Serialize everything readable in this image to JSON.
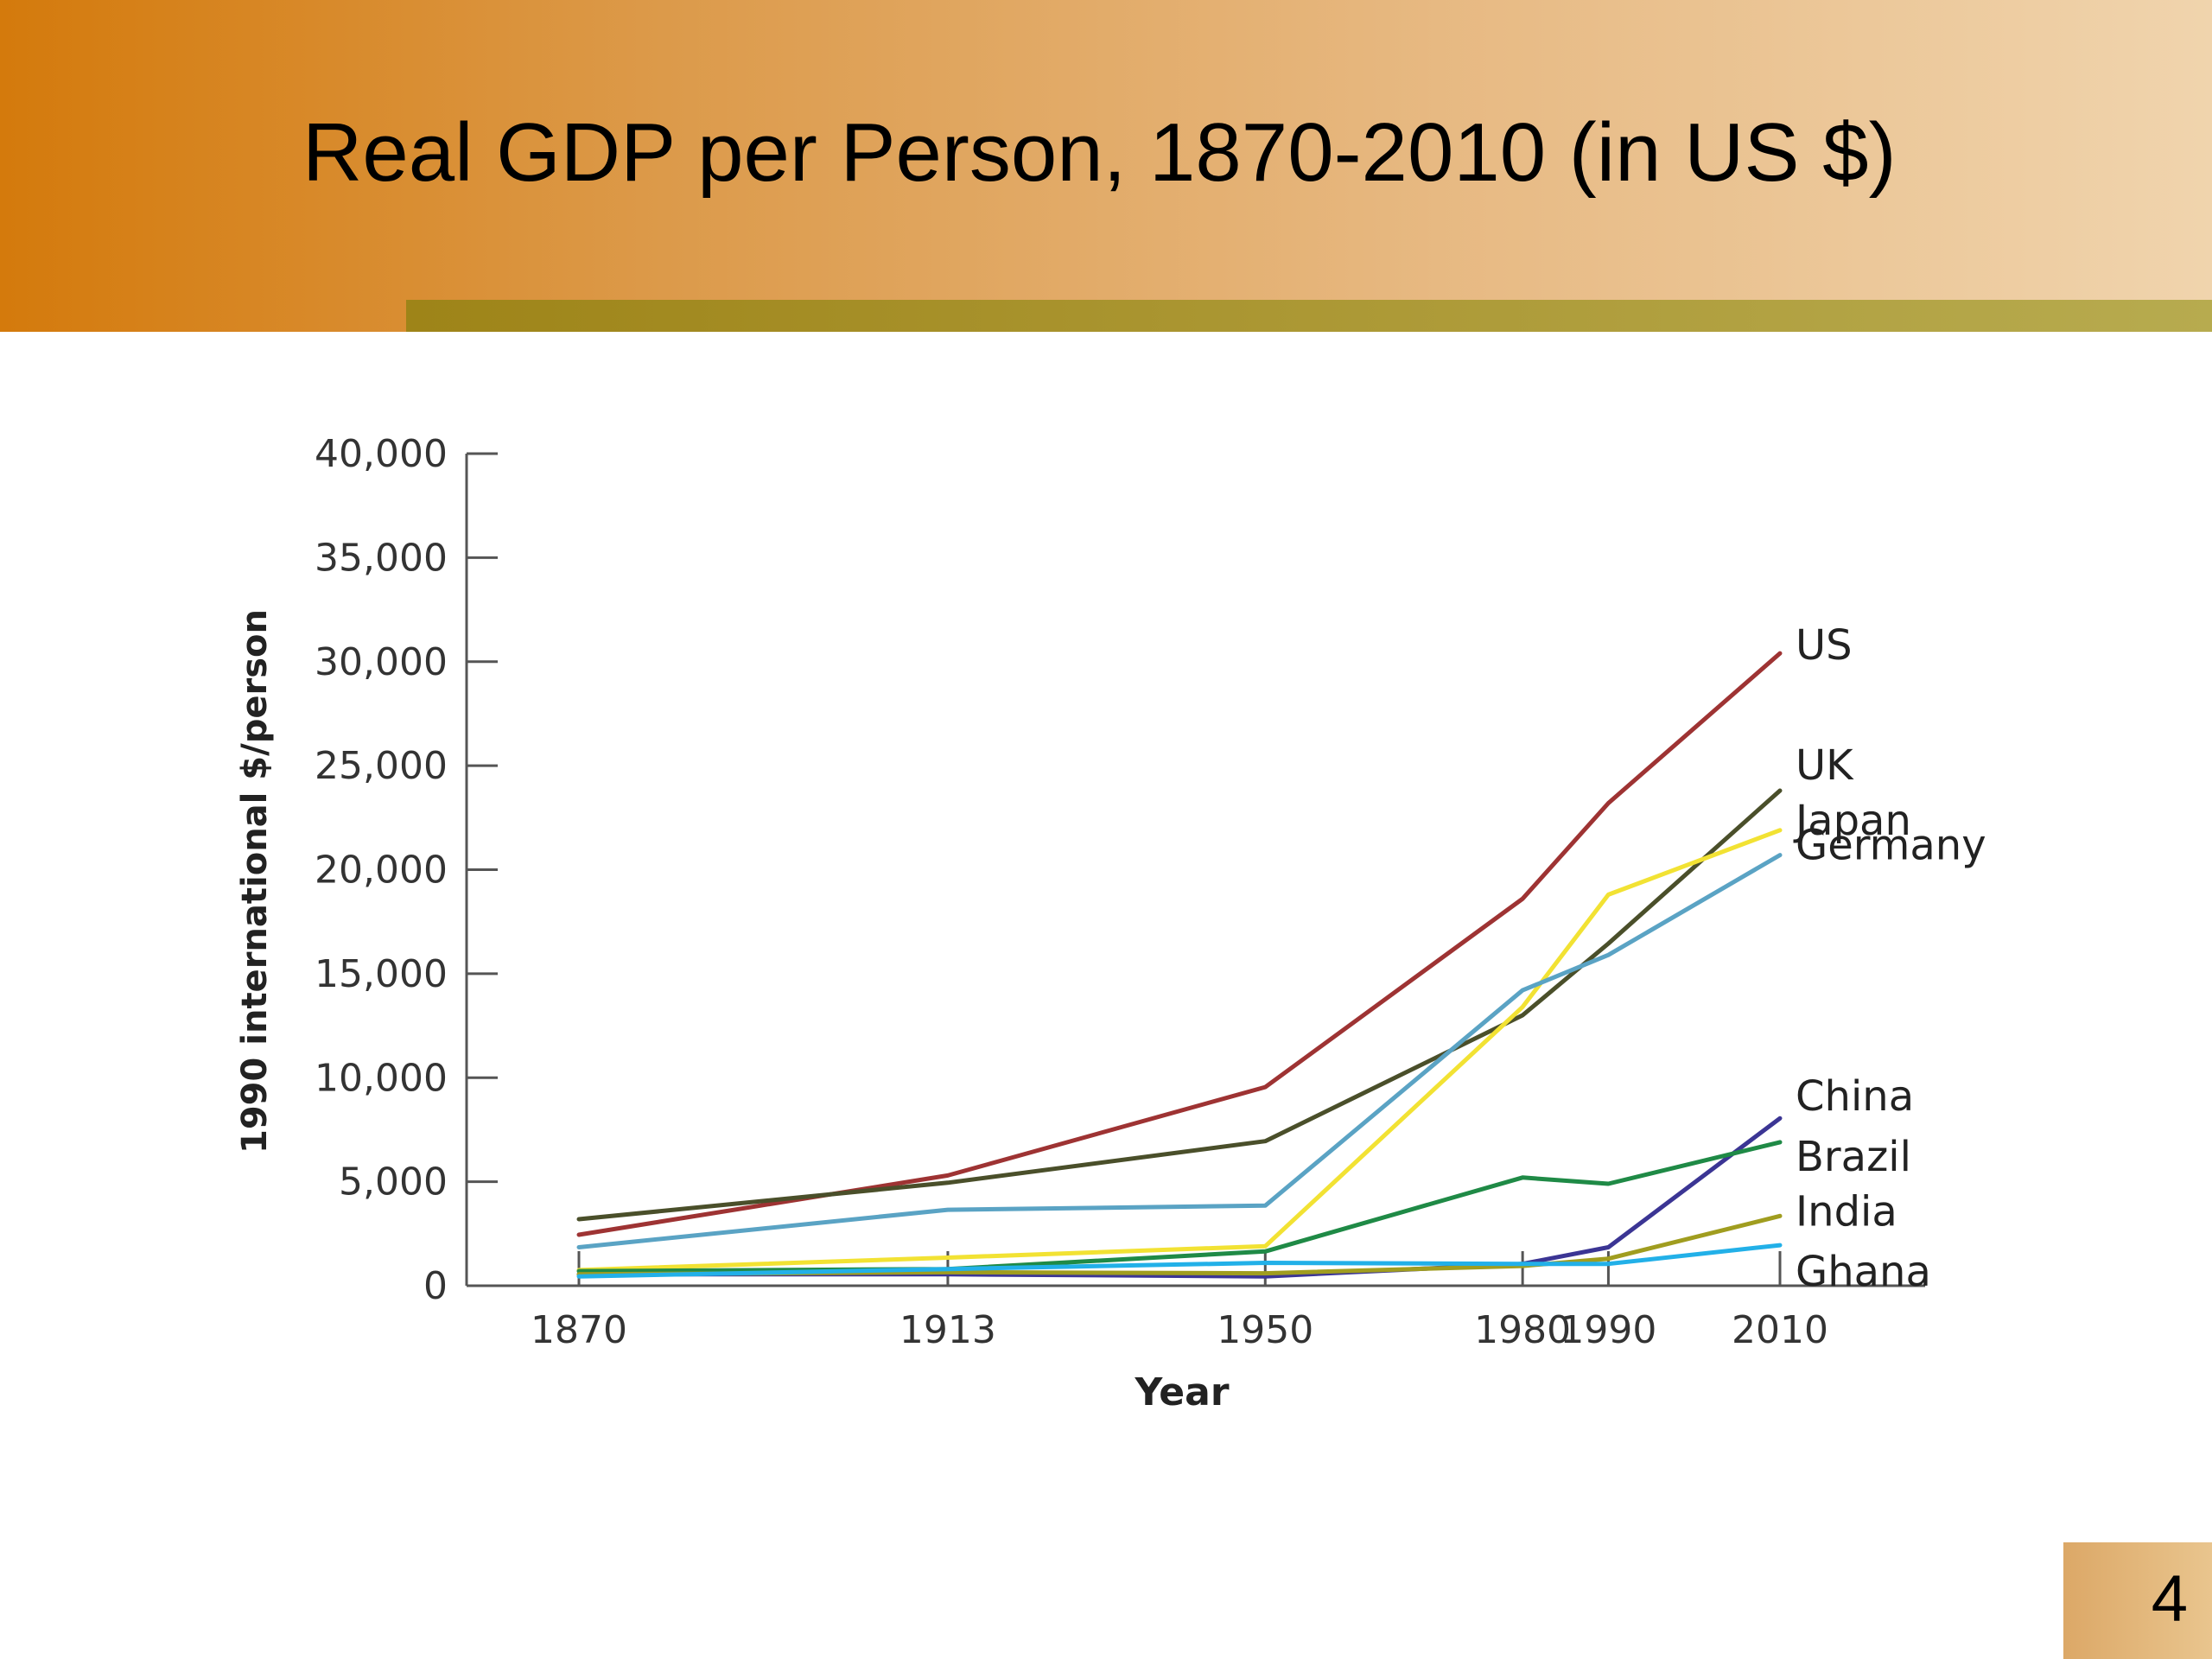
{
  "slide": {
    "title": "Real GDP per Person, 1870-2010 (in US $)",
    "page_number": "4",
    "header_gradient": [
      "#d47a0c",
      "#f0d4ad"
    ],
    "accent_bar_color": "#a8922a"
  },
  "chart_data": {
    "type": "line",
    "title": "",
    "xlabel": "Year",
    "ylabel": "1990 international $/person",
    "x": [
      1870,
      1913,
      1950,
      1980,
      1990,
      2010
    ],
    "x_ticks": [
      "1870",
      "1913",
      "1950",
      "1980",
      "1990",
      "2010"
    ],
    "y_ticks": [
      "0",
      "5,000",
      "10,000",
      "15,000",
      "20,000",
      "25,000",
      "30,000",
      "35,000",
      "40,000"
    ],
    "ylim": [
      0,
      40000
    ],
    "grid": false,
    "legend": "direct labels at line ends",
    "series": [
      {
        "name": "US",
        "color": "#9e3333",
        "values": [
          2450,
          5300,
          9550,
          18600,
          23200,
          30400
        ]
      },
      {
        "name": "UK",
        "color": "#4a4f2a",
        "values": [
          3200,
          4950,
          6950,
          13000,
          16450,
          23800
        ]
      },
      {
        "name": "Japan",
        "color": "#f2e233",
        "values": [
          750,
          1350,
          1900,
          13400,
          18800,
          21900
        ]
      },
      {
        "name": "Germany",
        "color": "#5aa3c4",
        "values": [
          1850,
          3650,
          3850,
          14200,
          15900,
          20700
        ]
      },
      {
        "name": "China",
        "color": "#3b3594",
        "values": [
          550,
          550,
          450,
          1050,
          1850,
          8050
        ]
      },
      {
        "name": "Brazil",
        "color": "#1f8a46",
        "values": [
          700,
          800,
          1650,
          5200,
          4900,
          6900
        ]
      },
      {
        "name": "India",
        "color": "#a09d1f",
        "values": [
          550,
          650,
          600,
          950,
          1300,
          3350
        ]
      },
      {
        "name": "Ghana",
        "color": "#22b0e8",
        "values": [
          450,
          800,
          1100,
          1050,
          1050,
          1950
        ]
      }
    ]
  }
}
